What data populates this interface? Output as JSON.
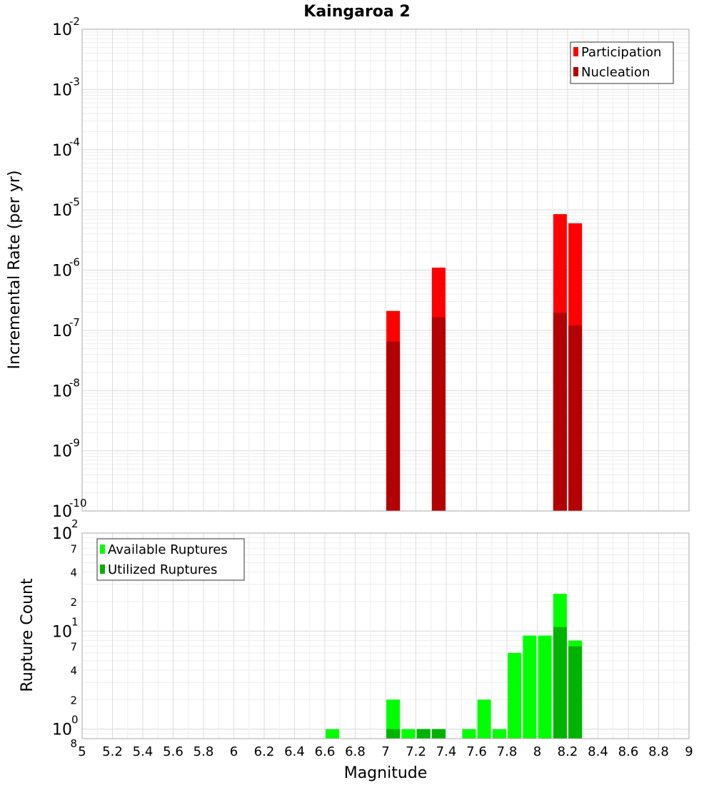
{
  "chart_data": [
    {
      "type": "bar",
      "panel": "top",
      "title": "Kaingaroa 2",
      "ylabel": "Incremental Rate (per yr)",
      "xlabel": "",
      "xlim": [
        5,
        9
      ],
      "ylim": [
        1e-10,
        0.01
      ],
      "yscale": "log",
      "grid": true,
      "legend_position": "top-right",
      "series": [
        {
          "name": "Participation",
          "color": "#ff0000",
          "x": [
            7.05,
            7.35,
            8.15,
            8.25
          ],
          "values": [
            2.1e-07,
            1.1e-06,
            8.5e-06,
            6e-06
          ]
        },
        {
          "name": "Nucleation",
          "color": "#b30000",
          "x": [
            7.05,
            7.35,
            8.15,
            8.25
          ],
          "values": [
            6.5e-08,
            1.65e-07,
            1.95e-07,
            1.2e-07
          ]
        }
      ],
      "y_ticks": [
        {
          "base": "10",
          "exp": "-10"
        },
        {
          "base": "10",
          "exp": "-9"
        },
        {
          "base": "10",
          "exp": "-8"
        },
        {
          "base": "10",
          "exp": "-7"
        },
        {
          "base": "10",
          "exp": "-6"
        },
        {
          "base": "10",
          "exp": "-5"
        },
        {
          "base": "10",
          "exp": "-4"
        },
        {
          "base": "10",
          "exp": "-3"
        },
        {
          "base": "10",
          "exp": "-2"
        }
      ]
    },
    {
      "type": "bar",
      "panel": "bottom",
      "ylabel": "Rupture Count",
      "xlabel": "Magnitude",
      "xlim": [
        5,
        9
      ],
      "ylim": [
        0.8,
        100
      ],
      "yscale": "log",
      "grid": true,
      "legend_position": "top-left",
      "series": [
        {
          "name": "Available Ruptures",
          "color": "#00ff00",
          "x": [
            6.65,
            7.05,
            7.15,
            7.25,
            7.35,
            7.55,
            7.65,
            7.75,
            7.85,
            7.95,
            8.05,
            8.15,
            8.25
          ],
          "values": [
            1,
            2,
            1,
            1,
            1,
            1,
            2,
            1,
            6,
            9,
            9,
            24,
            8
          ]
        },
        {
          "name": "Utilized Ruptures",
          "color": "#00b300",
          "x": [
            7.05,
            7.25,
            7.35,
            8.15,
            8.25
          ],
          "values": [
            1,
            1,
            1,
            11,
            7
          ]
        }
      ],
      "x_ticks": [
        "5",
        "5.2",
        "5.4",
        "5.6",
        "5.8",
        "6",
        "6.2",
        "6.4",
        "6.6",
        "6.8",
        "7",
        "7.2",
        "7.4",
        "7.6",
        "7.8",
        "8",
        "8.2",
        "8.4",
        "8.6",
        "8.8",
        "9"
      ],
      "y_major_ticks": [
        {
          "base": "10",
          "exp": "0"
        },
        {
          "base": "10",
          "exp": "1"
        },
        {
          "base": "10",
          "exp": "2"
        }
      ],
      "y_minor_ticks": [
        {
          "label": "8",
          "value": 0.8
        },
        {
          "label": "2",
          "value": 2
        },
        {
          "label": "4",
          "value": 4
        },
        {
          "label": "7",
          "value": 7
        },
        {
          "label": "2",
          "value": 20
        },
        {
          "label": "4",
          "value": 40
        },
        {
          "label": "7",
          "value": 70
        }
      ]
    }
  ]
}
